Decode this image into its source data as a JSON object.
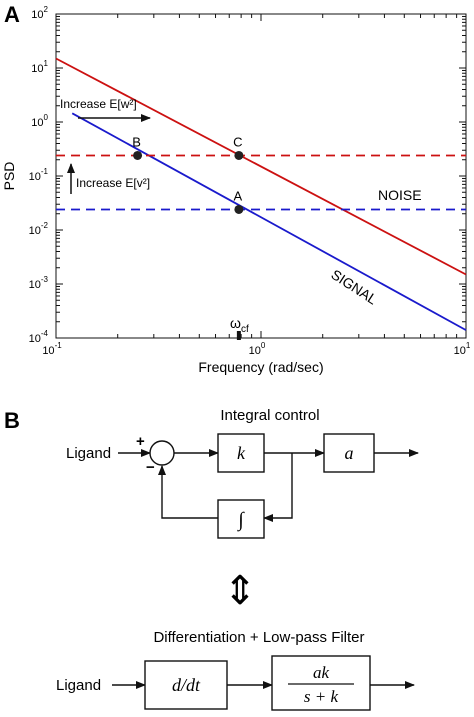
{
  "panel_a": {
    "label": "A",
    "ylabel": "PSD",
    "xlabel": "Frequency (rad/sec)",
    "xticks": [
      {
        "base": "10",
        "exp": "-1",
        "v": 0.1
      },
      {
        "base": "10",
        "exp": "0",
        "v": 1
      },
      {
        "base": "10",
        "exp": "1",
        "v": 10
      }
    ],
    "yticks": [
      {
        "base": "10",
        "exp": "2",
        "v": 100
      },
      {
        "base": "10",
        "exp": "1",
        "v": 10
      },
      {
        "base": "10",
        "exp": "0",
        "v": 1
      },
      {
        "base": "10",
        "exp": "-1",
        "v": 0.1
      },
      {
        "base": "10",
        "exp": "-2",
        "v": 0.01
      },
      {
        "base": "10",
        "exp": "-3",
        "v": 0.001
      },
      {
        "base": "10",
        "exp": "-4",
        "v": 0.0001
      }
    ],
    "annotations": {
      "increase_w": "Increase E[w²]",
      "increase_v": "Increase E[v²]",
      "noise": "NOISE",
      "signal": "SIGNAL",
      "omega": "ω",
      "omega_sub": "cf",
      "point_a": "A",
      "point_b": "B",
      "point_c": "C"
    }
  },
  "chart_data": {
    "type": "line",
    "xscale": "log",
    "yscale": "log",
    "xlim": [
      0.1,
      10
    ],
    "ylim": [
      0.0001,
      100
    ],
    "grid": false,
    "series": [
      {
        "name": "",
        "style": "solid",
        "color": "#cc1111",
        "x": [
          0.1,
          10
        ],
        "y": [
          15,
          0.0015
        ]
      },
      {
        "name": "SIGNAL",
        "style": "solid",
        "color": "#1a1acc",
        "x": [
          0.12,
          10
        ],
        "y": [
          1.45,
          0.00014
        ]
      },
      {
        "name": "",
        "style": "dashed",
        "color": "#cc1111",
        "x": [
          0.1,
          10
        ],
        "y": [
          0.24,
          0.24
        ]
      },
      {
        "name": "NOISE",
        "style": "dashed",
        "color": "#1a1acc",
        "x": [
          0.1,
          10
        ],
        "y": [
          0.024,
          0.024
        ]
      }
    ],
    "points": [
      {
        "label": "A",
        "x": 0.78,
        "y": 0.024
      },
      {
        "label": "B",
        "x": 0.25,
        "y": 0.24
      },
      {
        "label": "C",
        "x": 0.78,
        "y": 0.24
      }
    ],
    "marker_x": 0.78
  },
  "panel_b": {
    "label": "B",
    "title1": "Integral control",
    "title2": "Differentiation + Low-pass Filter",
    "ligand1": "Ligand",
    "ligand2": "Ligand",
    "plus": "+",
    "minus": "−",
    "block_k": "k",
    "block_a": "a",
    "block_int": "∫",
    "block_ddt": "d/dt",
    "frac_num": "ak",
    "frac_den": "s + k",
    "equiv": "⇕"
  }
}
